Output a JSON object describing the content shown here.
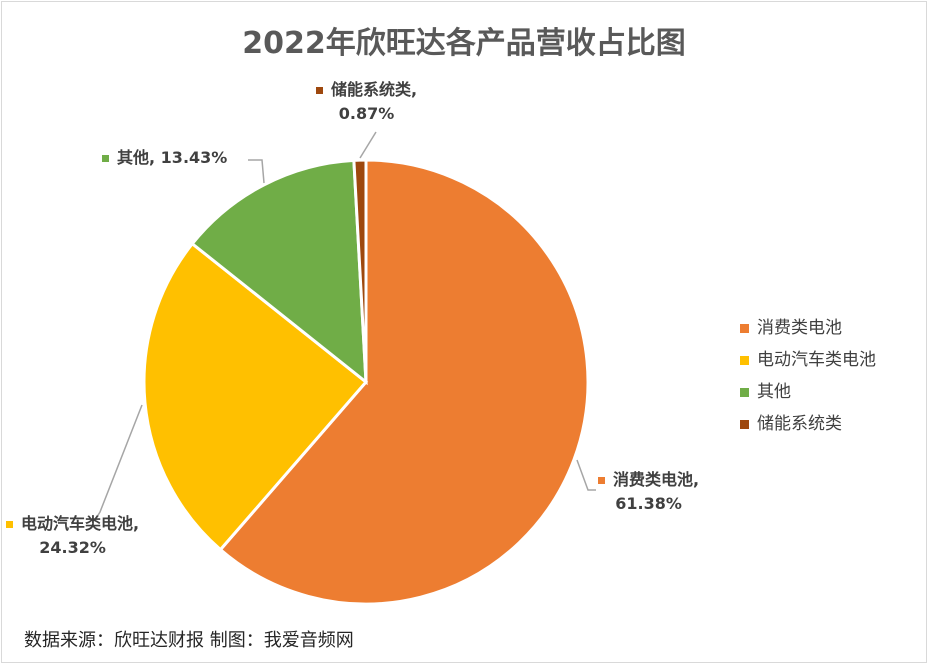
{
  "chart_data": {
    "type": "pie",
    "title": "2022年欣旺达各产品营收占比图",
    "start_angle": "12 o'clock",
    "direction": "clockwise",
    "legend_position": "right",
    "slices": [
      {
        "name": "消费类电池",
        "value": 61.38,
        "label": "61.38%",
        "color": "#ED7D31"
      },
      {
        "name": "电动汽车类电池",
        "value": 24.32,
        "label": "24.32%",
        "color": "#FFC000"
      },
      {
        "name": "其他",
        "value": 13.43,
        "label": "13.43%",
        "color": "#70AD47"
      },
      {
        "name": "储能系统类",
        "value": 0.87,
        "label": "0.87%",
        "color": "#9E480E"
      }
    ]
  },
  "footer": {
    "source": "数据来源：欣旺达财报  制图：我爱音频网"
  }
}
